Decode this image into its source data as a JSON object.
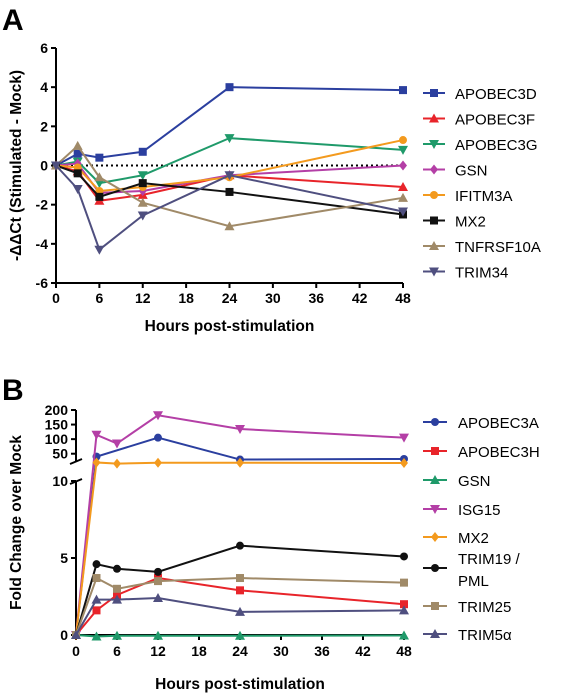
{
  "colors": {
    "APOBEC3D": "#2b3f9f",
    "APOBEC3F": "#e8242a",
    "APOBEC3G": "#1f9a6a",
    "GSN_A": "#b43fa6",
    "IFITM3A": "#f39a1e",
    "MX2_A": "#111111",
    "TNFRSF10A": "#a08a68",
    "TRIM34": "#4f4f7f",
    "APOBEC3A": "#2b3f9f",
    "APOBEC3H": "#e8242a",
    "GSN_B": "#1f9a6a",
    "ISG15": "#b43fa6",
    "MX2_B": "#f39a1e",
    "TRIM19": "#111111",
    "TRIM25": "#a08a68",
    "TRIM5a": "#4f4f7f"
  },
  "chart_data": [
    {
      "panel": "A",
      "type": "line",
      "xlabel": "Hours post-stimulation",
      "ylabel": "-ΔΔCt (Stimulated - Mock)",
      "xlim": [
        0,
        48
      ],
      "ylim": [
        -6,
        6
      ],
      "x_ticks": [
        "0",
        "6",
        "12",
        "18",
        "24",
        "30",
        "36",
        "42",
        "48"
      ],
      "y_ticks": [
        "6",
        "4",
        "2",
        "0",
        "-2",
        "-4",
        "-6"
      ],
      "reference_line": {
        "y": 0,
        "style": "dotted"
      },
      "series": [
        {
          "name": "APOBEC3D",
          "marker": "square",
          "x": [
            0,
            3,
            6,
            12,
            24,
            48
          ],
          "y": [
            0,
            0.6,
            0.4,
            0.7,
            4.0,
            3.85
          ]
        },
        {
          "name": "APOBEC3F",
          "marker": "triangle-up",
          "x": [
            0,
            3,
            6,
            12,
            24,
            48
          ],
          "y": [
            0,
            -0.3,
            -1.8,
            -1.5,
            -0.5,
            -1.1
          ]
        },
        {
          "name": "APOBEC3G",
          "marker": "triangle-down",
          "x": [
            0,
            3,
            6,
            12,
            24,
            48
          ],
          "y": [
            0,
            0.2,
            -0.9,
            -0.5,
            1.4,
            0.8
          ]
        },
        {
          "name": "GSN",
          "marker": "diamond",
          "x": [
            0,
            3,
            6,
            12,
            24,
            48
          ],
          "y": [
            0,
            0.1,
            -1.4,
            -1.3,
            -0.5,
            0.0
          ]
        },
        {
          "name": "IFITM3A",
          "marker": "circle",
          "x": [
            0,
            3,
            6,
            12,
            24,
            48
          ],
          "y": [
            0,
            -0.1,
            -1.3,
            -1.1,
            -0.6,
            1.3
          ]
        },
        {
          "name": "MX2",
          "marker": "square",
          "x": [
            0,
            3,
            6,
            12,
            24,
            48
          ],
          "y": [
            0,
            -0.4,
            -1.6,
            -0.9,
            -1.35,
            -2.5
          ]
        },
        {
          "name": "TNFRSF10A",
          "marker": "triangle-up",
          "x": [
            0,
            3,
            6,
            12,
            24,
            48
          ],
          "y": [
            0,
            1.0,
            -0.6,
            -1.9,
            -3.1,
            -1.65
          ]
        },
        {
          "name": "TRIM34",
          "marker": "triangle-down",
          "x": [
            0,
            3,
            6,
            12,
            24,
            48
          ],
          "y": [
            0,
            -1.2,
            -4.3,
            -2.55,
            -0.5,
            -2.35
          ]
        }
      ]
    },
    {
      "panel": "B",
      "type": "line",
      "xlabel": "Hours post-stimulation",
      "ylabel": "Fold Change over Mock",
      "xlim": [
        0,
        48
      ],
      "ylim_lower": [
        0,
        10
      ],
      "ylim_upper": [
        25,
        200
      ],
      "x_ticks": [
        "0",
        "6",
        "12",
        "18",
        "24",
        "30",
        "36",
        "42",
        "48"
      ],
      "y_ticks_upper": [
        "200",
        "150",
        "100",
        "50"
      ],
      "y_ticks_lower": [
        "10",
        "5",
        "0"
      ],
      "series": [
        {
          "name": "APOBEC3A",
          "marker": "circle",
          "x": [
            0,
            3,
            12,
            24,
            48
          ],
          "y": [
            0,
            40,
            105,
            30,
            32
          ]
        },
        {
          "name": "APOBEC3H",
          "marker": "square",
          "x": [
            0,
            3,
            6,
            12,
            24,
            48
          ],
          "y": [
            0,
            1.6,
            2.6,
            3.7,
            2.9,
            2.0
          ]
        },
        {
          "name": "GSN",
          "marker": "triangle-up",
          "x": [
            0,
            3,
            6,
            12,
            24,
            48
          ],
          "y": [
            0,
            -0.1,
            -0.05,
            -0.05,
            -0.05,
            -0.03
          ]
        },
        {
          "name": "ISG15",
          "marker": "triangle-down",
          "x": [
            0,
            3,
            6,
            12,
            24,
            48
          ],
          "y": [
            0,
            115,
            85,
            182,
            135,
            105
          ]
        },
        {
          "name": "MX2",
          "marker": "diamond",
          "x": [
            0,
            3,
            6,
            12,
            24,
            48
          ],
          "y": [
            0,
            20,
            16,
            19,
            19,
            18
          ]
        },
        {
          "name": "TRIM19 / PML",
          "marker": "circle",
          "x": [
            0,
            3,
            6,
            12,
            24,
            48
          ],
          "y": [
            0,
            4.6,
            4.3,
            4.1,
            5.8,
            5.1
          ]
        },
        {
          "name": "TRIM25",
          "marker": "square",
          "x": [
            0,
            3,
            6,
            12,
            24,
            48
          ],
          "y": [
            0,
            3.7,
            3.0,
            3.5,
            3.7,
            3.4
          ]
        },
        {
          "name": "TRIM5α",
          "marker": "triangle-up",
          "x": [
            0,
            3,
            6,
            12,
            24,
            48
          ],
          "y": [
            0,
            2.3,
            2.3,
            2.4,
            1.5,
            1.6
          ]
        }
      ]
    }
  ],
  "panels": {
    "A": {
      "letter": "A",
      "legend_keys": [
        "APOBEC3D",
        "APOBEC3F",
        "APOBEC3G",
        "GSN_A",
        "IFITM3A",
        "MX2_A",
        "TNFRSF10A",
        "TRIM34"
      ]
    },
    "B": {
      "letter": "B",
      "legend_keys": [
        "APOBEC3A",
        "APOBEC3H",
        "GSN_B",
        "ISG15",
        "MX2_B",
        "TRIM19",
        "TRIM25",
        "TRIM5a"
      ]
    }
  }
}
